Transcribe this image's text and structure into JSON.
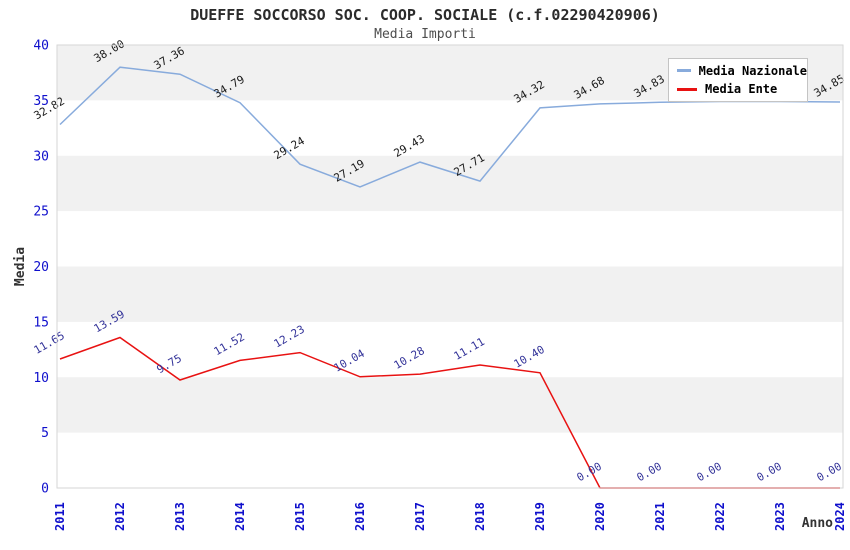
{
  "chart": {
    "title": "DUEFFE SOCCORSO SOC. COOP. SOCIALE (c.f.02290420906)",
    "subtitle": "Media Importi"
  },
  "chart_data": {
    "type": "line",
    "x": [
      2011,
      2012,
      2013,
      2014,
      2015,
      2016,
      2017,
      2018,
      2019,
      2020,
      2021,
      2022,
      2023,
      2024
    ],
    "xlabel": "Anno",
    "ylabel": "Media",
    "ylim": [
      0,
      40
    ],
    "yticks": [
      0,
      5,
      10,
      15,
      20,
      25,
      30,
      35,
      40
    ],
    "grid": "horizontal-bands",
    "legend_position": "top-right",
    "series": [
      {
        "name": "Media Nazionale",
        "color": "#88abdc",
        "label_color": "#1a1a1a",
        "values": [
          32.82,
          38.0,
          37.36,
          34.79,
          29.24,
          27.19,
          29.43,
          27.71,
          34.32,
          34.68,
          34.83,
          34.9,
          34.9,
          34.85
        ],
        "labels": [
          "32.82",
          "38.00",
          "37.36",
          "34.79",
          "29.24",
          "27.19",
          "29.43",
          "27.71",
          "34.32",
          "34.68",
          "34.83",
          null,
          null,
          "34.85"
        ]
      },
      {
        "name": "Media Ente",
        "color": "#e81212",
        "label_color": "#333399",
        "values": [
          11.65,
          13.59,
          9.75,
          11.52,
          12.23,
          10.04,
          10.28,
          11.11,
          10.4,
          0.0,
          0.0,
          0.0,
          0.0,
          0.0
        ],
        "labels": [
          "11.65",
          "13.59",
          "9.75",
          "11.52",
          "12.23",
          "10.04",
          "10.28",
          "11.11",
          "10.40",
          "0.00",
          "0.00",
          "0.00",
          "0.00",
          "0.00"
        ]
      }
    ],
    "colors": {
      "axis_text": "#0f0fcc",
      "axis_title": "#333333",
      "band_fill": "#f1f1f1",
      "plot_border": "#d6d6d6",
      "title_text": "#2b2b2b",
      "subtitle_text": "#4d4d4d"
    }
  }
}
